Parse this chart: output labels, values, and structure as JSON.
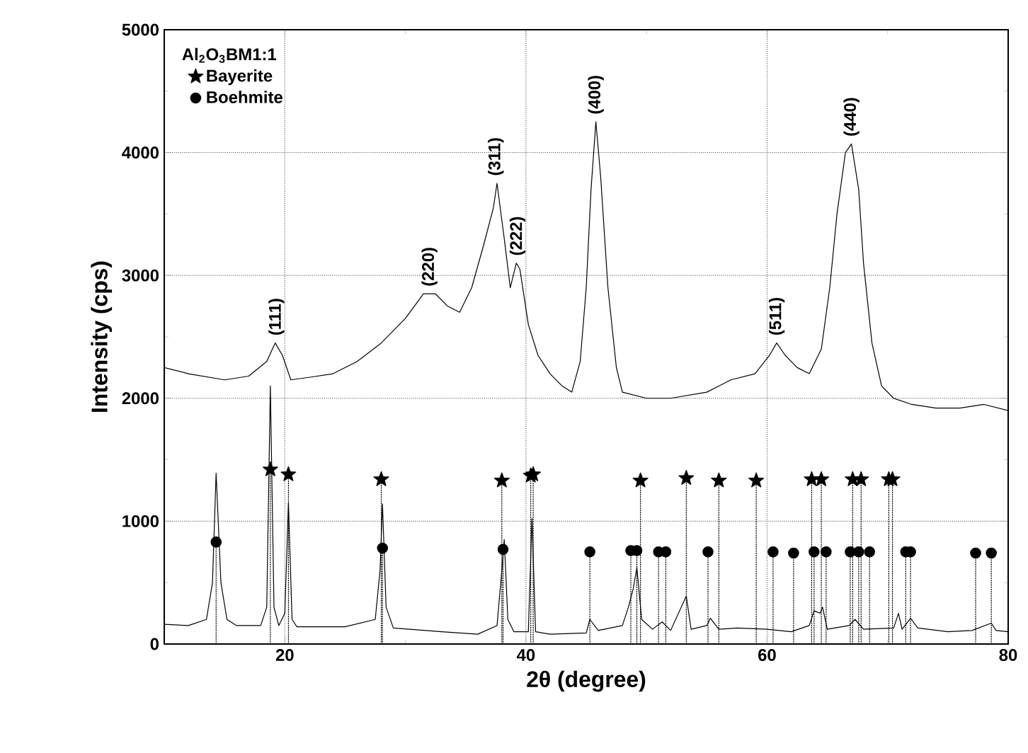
{
  "chart_data": {
    "type": "line",
    "xlabel": "2θ (degree)",
    "ylabel": "Intensity (cps)",
    "legend_title": "Al$_{2}$O$_{3}$BM1:1",
    "xlim": [
      10,
      80
    ],
    "ylim": [
      0,
      5000
    ],
    "xticks": [
      {
        "value": 10,
        "label": null
      },
      20,
      {
        "value": 30,
        "label": null
      },
      40,
      {
        "value": 50,
        "label": null
      },
      60,
      {
        "value": 70,
        "label": null
      },
      80
    ],
    "yticks": [
      0,
      {
        "value": 500,
        "label": null
      },
      1000,
      {
        "value": 1500,
        "label": null
      },
      2000,
      {
        "value": 2500,
        "label": null
      },
      3000,
      {
        "value": 3500,
        "label": null
      },
      4000,
      {
        "value": 4500,
        "label": null
      },
      5000
    ],
    "grid": true,
    "legend": "top left",
    "series": [
      {
        "color": "#000000",
        "line_style": "solid",
        "marker": "none",
        "x": [
          10,
          12,
          15,
          17,
          18.5,
          19.2,
          19.8,
          20.5,
          22,
          24,
          26,
          28,
          30,
          31.5,
          32.5,
          33.5,
          34.5,
          35.5,
          36.5,
          37.3,
          37.6,
          38.2,
          38.7,
          39.2,
          39.5,
          40.2,
          41,
          42,
          43,
          43.8,
          44.5,
          45,
          45.4,
          45.8,
          46.2,
          46.8,
          47.5,
          48,
          50,
          52,
          55,
          57,
          59,
          60.2,
          60.8,
          61.5,
          62.5,
          63.5,
          64.5,
          65.2,
          65.8,
          66.5,
          67,
          67.6,
          68,
          68.7,
          69.5,
          70.5,
          72,
          74,
          76,
          78,
          80
        ],
        "values": [
          2250,
          2200,
          2150,
          2180,
          2300,
          2450,
          2350,
          2150,
          2170,
          2200,
          2300,
          2450,
          2650,
          2850,
          2850,
          2750,
          2700,
          2900,
          3250,
          3550,
          3750,
          3300,
          2900,
          3100,
          3050,
          2600,
          2350,
          2200,
          2100,
          2050,
          2300,
          2900,
          3700,
          4250,
          3800,
          2900,
          2250,
          2050,
          2000,
          2000,
          2050,
          2150,
          2200,
          2350,
          2450,
          2350,
          2250,
          2200,
          2400,
          2900,
          3500,
          4000,
          4070,
          3700,
          3100,
          2450,
          2100,
          2000,
          1950,
          1920,
          1920,
          1950,
          1900
        ]
      },
      {
        "color": "#000000",
        "line_style": "solid",
        "marker": "none",
        "x": [
          10,
          12,
          13.5,
          14,
          14.3,
          14.7,
          15.2,
          16,
          18,
          18.5,
          18.8,
          19.1,
          19.5,
          20,
          20.3,
          20.6,
          21,
          25,
          27.5,
          27.9,
          28.1,
          28.4,
          29,
          33,
          36,
          37.6,
          38,
          38.2,
          38.5,
          39,
          40.2,
          40.5,
          40.8,
          42,
          45,
          45.3,
          46,
          48,
          48.5,
          48.9,
          49.2,
          49.6,
          50.5,
          51.3,
          52,
          53.3,
          53.7,
          55,
          55.3,
          56,
          57.5,
          60,
          62,
          63.5,
          63.9,
          64.4,
          64.6,
          65,
          66.8,
          67.3,
          68,
          70.5,
          70.9,
          71.2,
          71.9,
          72.5,
          75,
          77,
          78.6,
          79,
          80
        ],
        "values": [
          160,
          150,
          200,
          500,
          1390,
          500,
          200,
          150,
          150,
          300,
          2100,
          300,
          150,
          250,
          1150,
          200,
          140,
          140,
          200,
          600,
          1140,
          300,
          130,
          100,
          80,
          150,
          600,
          850,
          200,
          100,
          100,
          1020,
          100,
          80,
          90,
          200,
          110,
          150,
          300,
          450,
          620,
          200,
          120,
          180,
          110,
          390,
          120,
          150,
          210,
          120,
          130,
          120,
          100,
          150,
          270,
          250,
          300,
          120,
          150,
          200,
          120,
          130,
          250,
          120,
          210,
          130,
          100,
          110,
          170,
          110,
          100
        ]
      },
      {
        "type": "lollipop",
        "name": "Bayerite",
        "color": "#000000",
        "line_style": "dotted",
        "marker": "star",
        "x": [
          18.8,
          20.3,
          28.0,
          38.0,
          40.4,
          40.6,
          49.5,
          53.3,
          56.0,
          59.1,
          63.7,
          64.5,
          67.1,
          67.8,
          70.1,
          70.4
        ],
        "values": [
          1420,
          1380,
          1340,
          1330,
          1370,
          1380,
          1330,
          1350,
          1330,
          1330,
          1340,
          1340,
          1340,
          1340,
          1340,
          1340
        ]
      },
      {
        "type": "lollipop",
        "name": "Boehmite",
        "color": "#000000",
        "line_style": "dotted",
        "marker": "circle",
        "x": [
          14.3,
          28.1,
          38.1,
          45.3,
          48.7,
          49.2,
          51.0,
          51.6,
          55.1,
          60.5,
          62.2,
          63.9,
          64.9,
          66.9,
          67.6,
          68.5,
          71.5,
          71.9,
          77.3,
          78.6
        ],
        "values": [
          830,
          780,
          770,
          750,
          760,
          760,
          750,
          750,
          750,
          750,
          740,
          750,
          750,
          750,
          750,
          750,
          750,
          750,
          740,
          740
        ]
      }
    ],
    "annotations": [
      {
        "text": "(111)",
        "x": 19.3,
        "y": 2450
      },
      {
        "text": "(220)",
        "x": 32,
        "y": 2850
      },
      {
        "text": "(311)",
        "x": 37.5,
        "y": 3750
      },
      {
        "text": "(222)",
        "x": 39.3,
        "y": 3100
      },
      {
        "text": "(400)",
        "x": 45.8,
        "y": 4250
      },
      {
        "text": "(511)",
        "x": 60.8,
        "y": 2450
      },
      {
        "text": "(440)",
        "x": 67,
        "y": 4070
      }
    ]
  }
}
